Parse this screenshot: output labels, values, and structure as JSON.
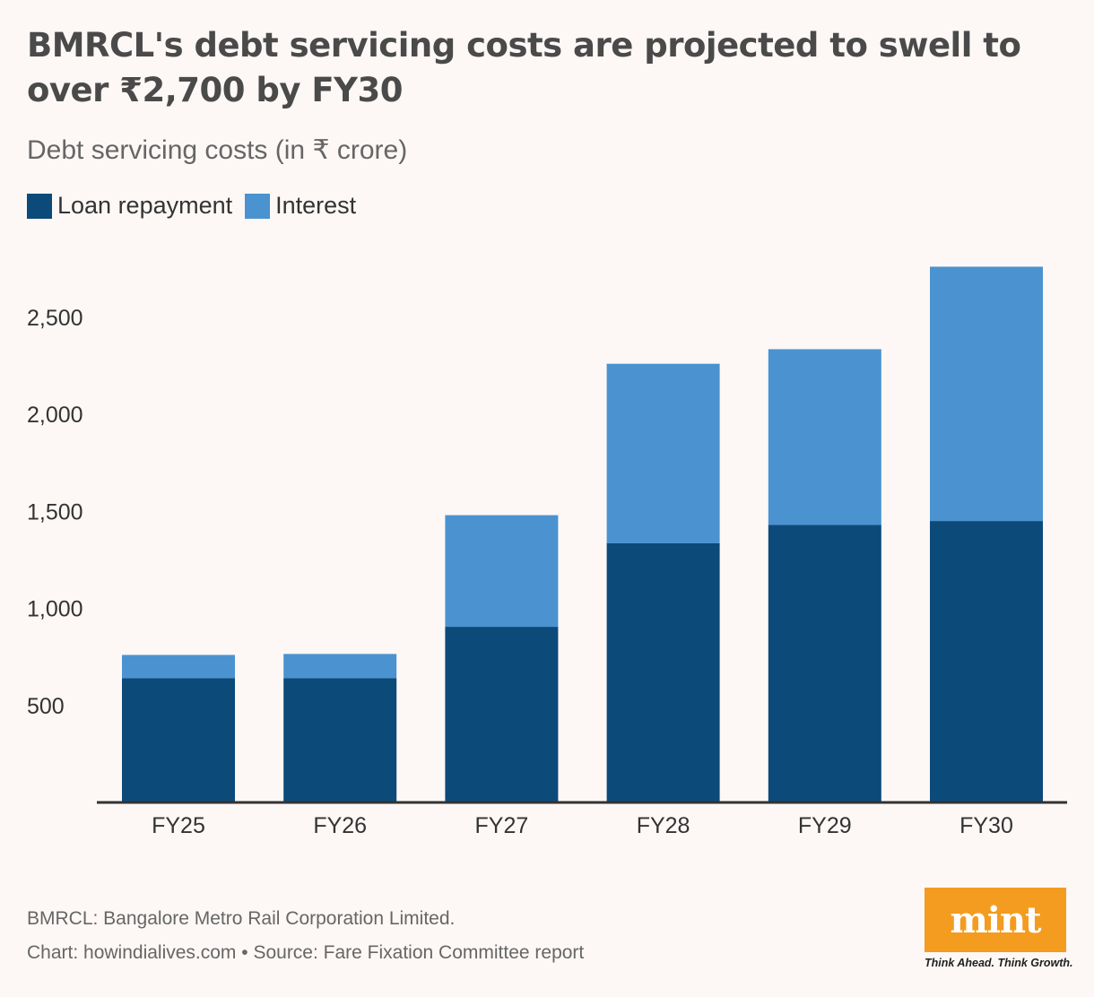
{
  "title": "BMRCL's debt servicing costs are projected to swell to over ₹2,700 by FY30",
  "subtitle": "Debt servicing costs (in ₹ crore)",
  "legend": {
    "loan": {
      "label": "Loan repayment",
      "color": "#0c4a7a"
    },
    "interest": {
      "label": "Interest",
      "color": "#4a93d0"
    }
  },
  "chart_data": {
    "type": "bar",
    "stacked": true,
    "categories": [
      "FY25",
      "FY26",
      "FY27",
      "FY28",
      "FY29",
      "FY30"
    ],
    "series": [
      {
        "name": "Loan repayment",
        "color": "#0c4a7a",
        "values": [
          640,
          640,
          905,
          1335,
          1430,
          1450
        ]
      },
      {
        "name": "Interest",
        "color": "#4a93d0",
        "values": [
          120,
          125,
          575,
          925,
          905,
          1310
        ]
      }
    ],
    "yticks": [
      "500",
      "1,000",
      "1,500",
      "2,000",
      "2,500"
    ],
    "ytick_values": [
      500,
      1000,
      1500,
      2000,
      2500
    ],
    "ylim": [
      0,
      2900
    ],
    "grid": false,
    "legend_position": "top-left",
    "ylabel": "Debt servicing costs (in ₹ crore)"
  },
  "footer": {
    "note": "BMRCL: Bangalore Metro Rail Corporation Limited.",
    "source": "Chart: howindialives.com • Source: Fare Fixation Committee report"
  },
  "logo": {
    "text": "mint",
    "tagline": "Think Ahead. Think Growth.",
    "color": "#f39c1f"
  }
}
